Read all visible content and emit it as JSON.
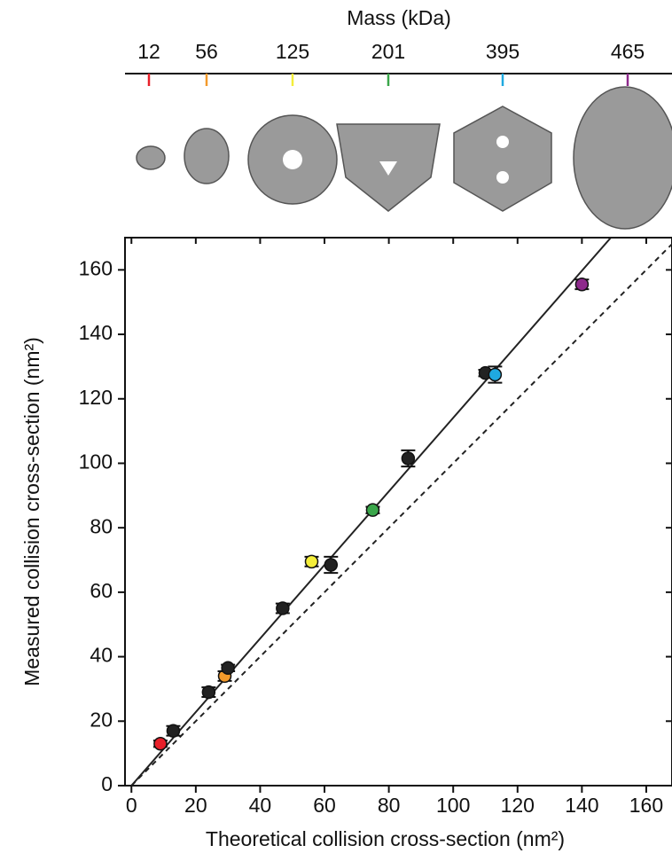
{
  "chart_data": {
    "type": "scatter",
    "top_axis": {
      "title": "Mass (kDa)",
      "ticks": [
        12,
        56,
        125,
        201,
        395,
        465
      ],
      "colors": [
        "#e8202a",
        "#f39a2b",
        "#f4ee3a",
        "#3aa64a",
        "#1fa9e0",
        "#8e2a8c"
      ]
    },
    "x_label": "Theoretical collision cross-section (nm²)",
    "y_label": "Measured collision cross-section (nm²)",
    "x": [
      9,
      13,
      24,
      29,
      30,
      47,
      56,
      62,
      75,
      86,
      110,
      113,
      140
    ],
    "values": [
      13,
      17,
      29,
      34,
      36.5,
      55,
      69.5,
      68.5,
      85.5,
      101.5,
      128,
      127.5,
      155.5
    ],
    "errors": [
      1,
      1.5,
      1.5,
      1.5,
      1,
      1.5,
      1.5,
      2.5,
      1,
      2.5,
      1,
      2.5,
      1.5
    ],
    "colors": [
      "#e8202a",
      "#222222",
      "#222222",
      "#f39a2b",
      "#222222",
      "#222222",
      "#f4ee3a",
      "#222222",
      "#3aa64a",
      "#222222",
      "#222222",
      "#1fa9e0",
      "#8e2a8c"
    ],
    "lines": [
      {
        "x": [
          0,
          149
        ],
        "values": [
          0,
          170
        ],
        "color": "#222222",
        "dashed": false
      },
      {
        "x": [
          0,
          168
        ],
        "values": [
          0,
          168
        ],
        "color": "#222222",
        "dashed": true
      }
    ],
    "xlim": [
      -2,
      168
    ],
    "ylim": [
      0,
      170
    ],
    "xticks": [
      0,
      20,
      40,
      60,
      80,
      100,
      120,
      140,
      160
    ],
    "yticks": [
      0,
      20,
      40,
      60,
      80,
      100,
      120,
      140,
      160
    ]
  }
}
